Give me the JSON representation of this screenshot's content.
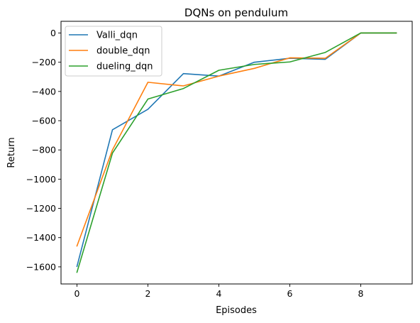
{
  "chart_data": {
    "type": "line",
    "title": "DQNs on pendulum",
    "xlabel": "Episodes",
    "ylabel": "Return",
    "x": [
      0,
      1,
      2,
      3,
      4,
      5,
      6,
      7,
      8,
      9
    ],
    "xlim": [
      -0.45,
      9.45
    ],
    "ylim": [
      -1717,
      80
    ],
    "xticks": [
      0,
      2,
      4,
      6,
      8
    ],
    "yticks": [
      0,
      -200,
      -400,
      -600,
      -800,
      -1000,
      -1200,
      -1400,
      -1600
    ],
    "ytick_labels": [
      "0",
      "−200",
      "−400",
      "−600",
      "−800",
      "−1000",
      "−1200",
      "−1400",
      "−1600"
    ],
    "grid": false,
    "legend_position": "top-left",
    "series": [
      {
        "name": "Valli_dqn",
        "color": "#1f77b4",
        "values": [
          -1597,
          -662,
          -522,
          -278,
          -295,
          -200,
          -173,
          -180,
          0,
          0
        ]
      },
      {
        "name": "double_dqn",
        "color": "#ff7f0e",
        "values": [
          -1457,
          -800,
          -337,
          -362,
          -295,
          -242,
          -170,
          -173,
          0,
          0
        ]
      },
      {
        "name": "dueling_dqn",
        "color": "#2ca02c",
        "values": [
          -1637,
          -822,
          -452,
          -380,
          -255,
          -215,
          -198,
          -133,
          0,
          0
        ]
      }
    ]
  }
}
